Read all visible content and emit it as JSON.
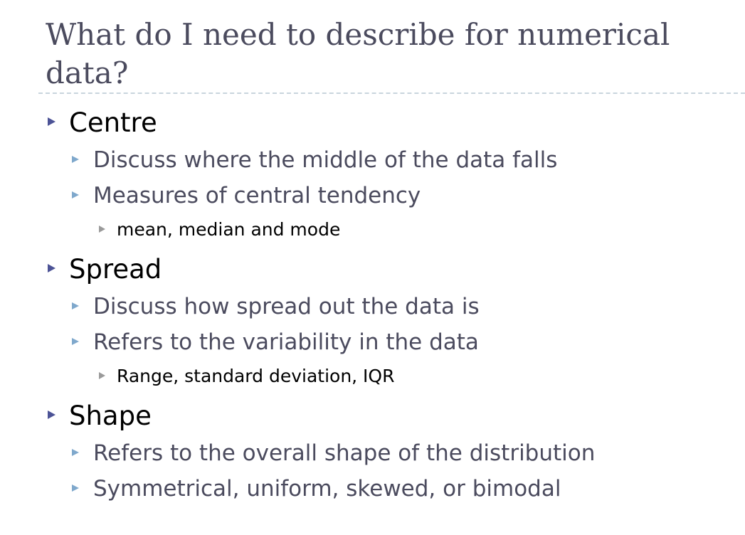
{
  "slide": {
    "title": "What do I need to describe for numerical data?",
    "bullets": [
      {
        "text": "Centre",
        "children": [
          {
            "text": "Discuss where the middle of the data falls"
          },
          {
            "text": "Measures of central tendency",
            "children": [
              {
                "text": "mean, median and mode"
              }
            ]
          }
        ]
      },
      {
        "text": "Spread",
        "children": [
          {
            "text": "Discuss how spread out the data is"
          },
          {
            "text": "Refers to the variability in the data",
            "children": [
              {
                "text": "Range, standard deviation, IQR"
              }
            ]
          }
        ]
      },
      {
        "text": "Shape",
        "children": [
          {
            "text": "Refers to the overall shape of the distribution"
          },
          {
            "text": "Symmetrical, uniform, skewed, or bimodal"
          }
        ]
      }
    ]
  },
  "colors": {
    "title": "#4b4b5e",
    "level1_text": "#000000",
    "level2_text": "#4b4b5e",
    "level3_text": "#000000",
    "level1_marker": "#4c5396",
    "level2_marker": "#7fa8cc",
    "level3_marker": "#9a9a9a",
    "divider": "#c9d5dd"
  },
  "icons": {
    "bullet_marker": "triangle-right-icon"
  }
}
